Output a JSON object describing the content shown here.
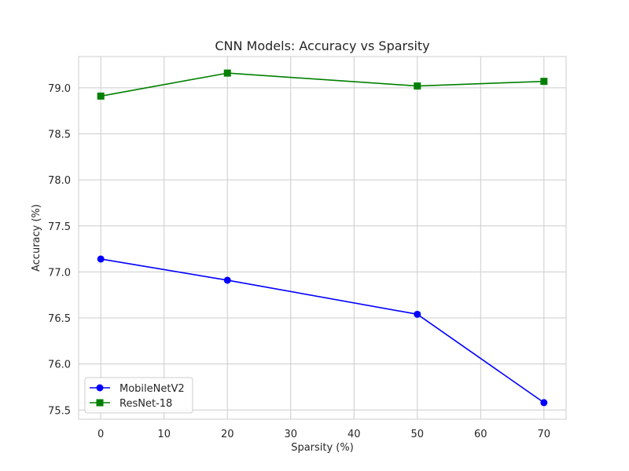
{
  "chart_data": {
    "type": "line",
    "title": "CNN Models: Accuracy vs Sparsity",
    "xlabel": "Sparsity (%)",
    "ylabel": "Accuracy (%)",
    "xlim": [
      -3.5,
      73.5
    ],
    "ylim": [
      75.4,
      79.34
    ],
    "x_ticks": [
      0,
      10,
      20,
      30,
      40,
      50,
      60,
      70
    ],
    "y_ticks": [
      75.5,
      76.0,
      76.5,
      77.0,
      77.5,
      78.0,
      78.5,
      79.0
    ],
    "x_tick_labels": [
      "0",
      "10",
      "20",
      "30",
      "40",
      "50",
      "60",
      "70"
    ],
    "y_tick_labels": [
      "75.5",
      "76.0",
      "76.5",
      "77.0",
      "77.5",
      "78.0",
      "78.5",
      "79.0"
    ],
    "grid": true,
    "legend_position": "lower-left",
    "series": [
      {
        "name": "MobileNetV2",
        "color": "#0000ff",
        "marker": "circle",
        "x": [
          0,
          20,
          50,
          70
        ],
        "y": [
          77.14,
          76.91,
          76.54,
          75.58
        ]
      },
      {
        "name": "ResNet-18",
        "color": "#008000",
        "marker": "square",
        "x": [
          0,
          20,
          50,
          70
        ],
        "y": [
          78.91,
          79.16,
          79.02,
          79.07
        ]
      }
    ]
  }
}
